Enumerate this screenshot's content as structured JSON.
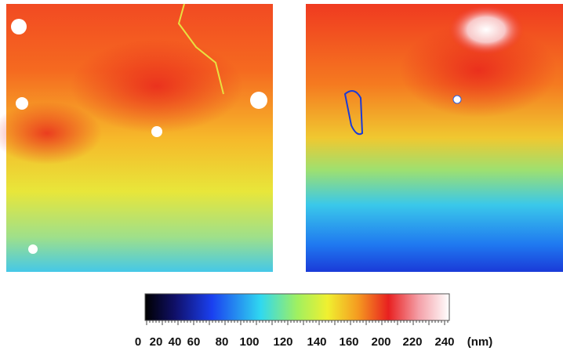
{
  "colorbar": {
    "ticks": [
      "0",
      "20",
      "40",
      "60",
      "80",
      "100",
      "120",
      "140",
      "160",
      "200",
      "220",
      "240"
    ],
    "unit": "(nm)"
  }
}
